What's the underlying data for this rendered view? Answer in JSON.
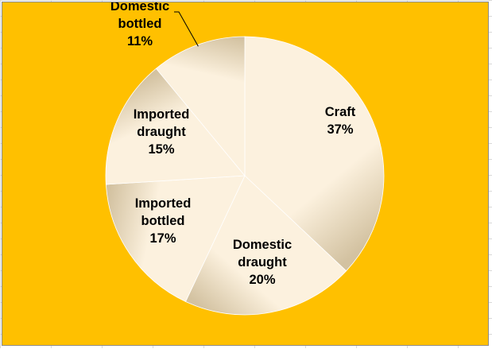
{
  "chart_data": {
    "type": "pie",
    "title": "",
    "categories": [
      "Craft",
      "Domestic draught",
      "Imported bottled",
      "Imported draught",
      "Domestic bottled"
    ],
    "values": [
      37,
      20,
      17,
      15,
      11
    ],
    "labels": [
      [
        "Craft",
        "37%"
      ],
      [
        "Domestic",
        "draught",
        "20%"
      ],
      [
        "Imported",
        "bottled",
        "17%"
      ],
      [
        "Imported",
        "draught",
        "15%"
      ],
      [
        "Domestic",
        "bottled",
        "11%"
      ]
    ],
    "unit": "%",
    "start_angle_deg": 0,
    "direction": "clockwise",
    "legend": "none",
    "colors": {
      "plot_background": "#FFC000",
      "slice_light": "#FCF1DE",
      "slice_dark": "#D3C2A1",
      "slice_edge": "#FFFFFF",
      "leader_line": "#000000"
    }
  }
}
